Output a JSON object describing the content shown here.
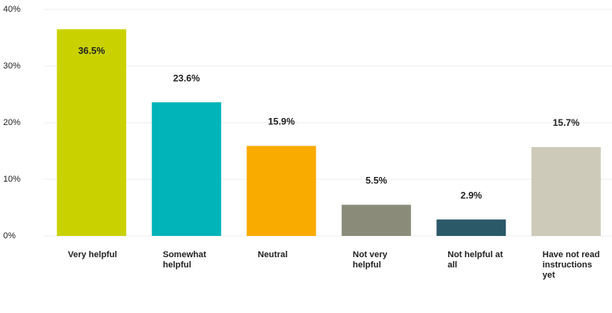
{
  "chart_data": {
    "type": "bar",
    "categories": [
      "Very helpful",
      "Somewhat helpful",
      "Neutral",
      "Not very helpful",
      "Not helpful at all",
      "Have not read instructions yet"
    ],
    "values": [
      36.5,
      23.6,
      15.9,
      5.5,
      2.9,
      15.7
    ],
    "value_labels": [
      "36.5%",
      "23.6%",
      "15.9%",
      "5.5%",
      "2.9%",
      "15.7%"
    ],
    "colors": [
      "#c9d200",
      "#00b4b9",
      "#f9ab00",
      "#8b8b7a",
      "#2b5968",
      "#cdcaba"
    ],
    "ylim": [
      0,
      40
    ],
    "yticks": [
      {
        "value": 0,
        "label": "0%"
      },
      {
        "value": 10,
        "label": "10%"
      },
      {
        "value": 20,
        "label": "20%"
      },
      {
        "value": 30,
        "label": "30%"
      },
      {
        "value": 40,
        "label": "40%"
      }
    ],
    "grid": true
  }
}
